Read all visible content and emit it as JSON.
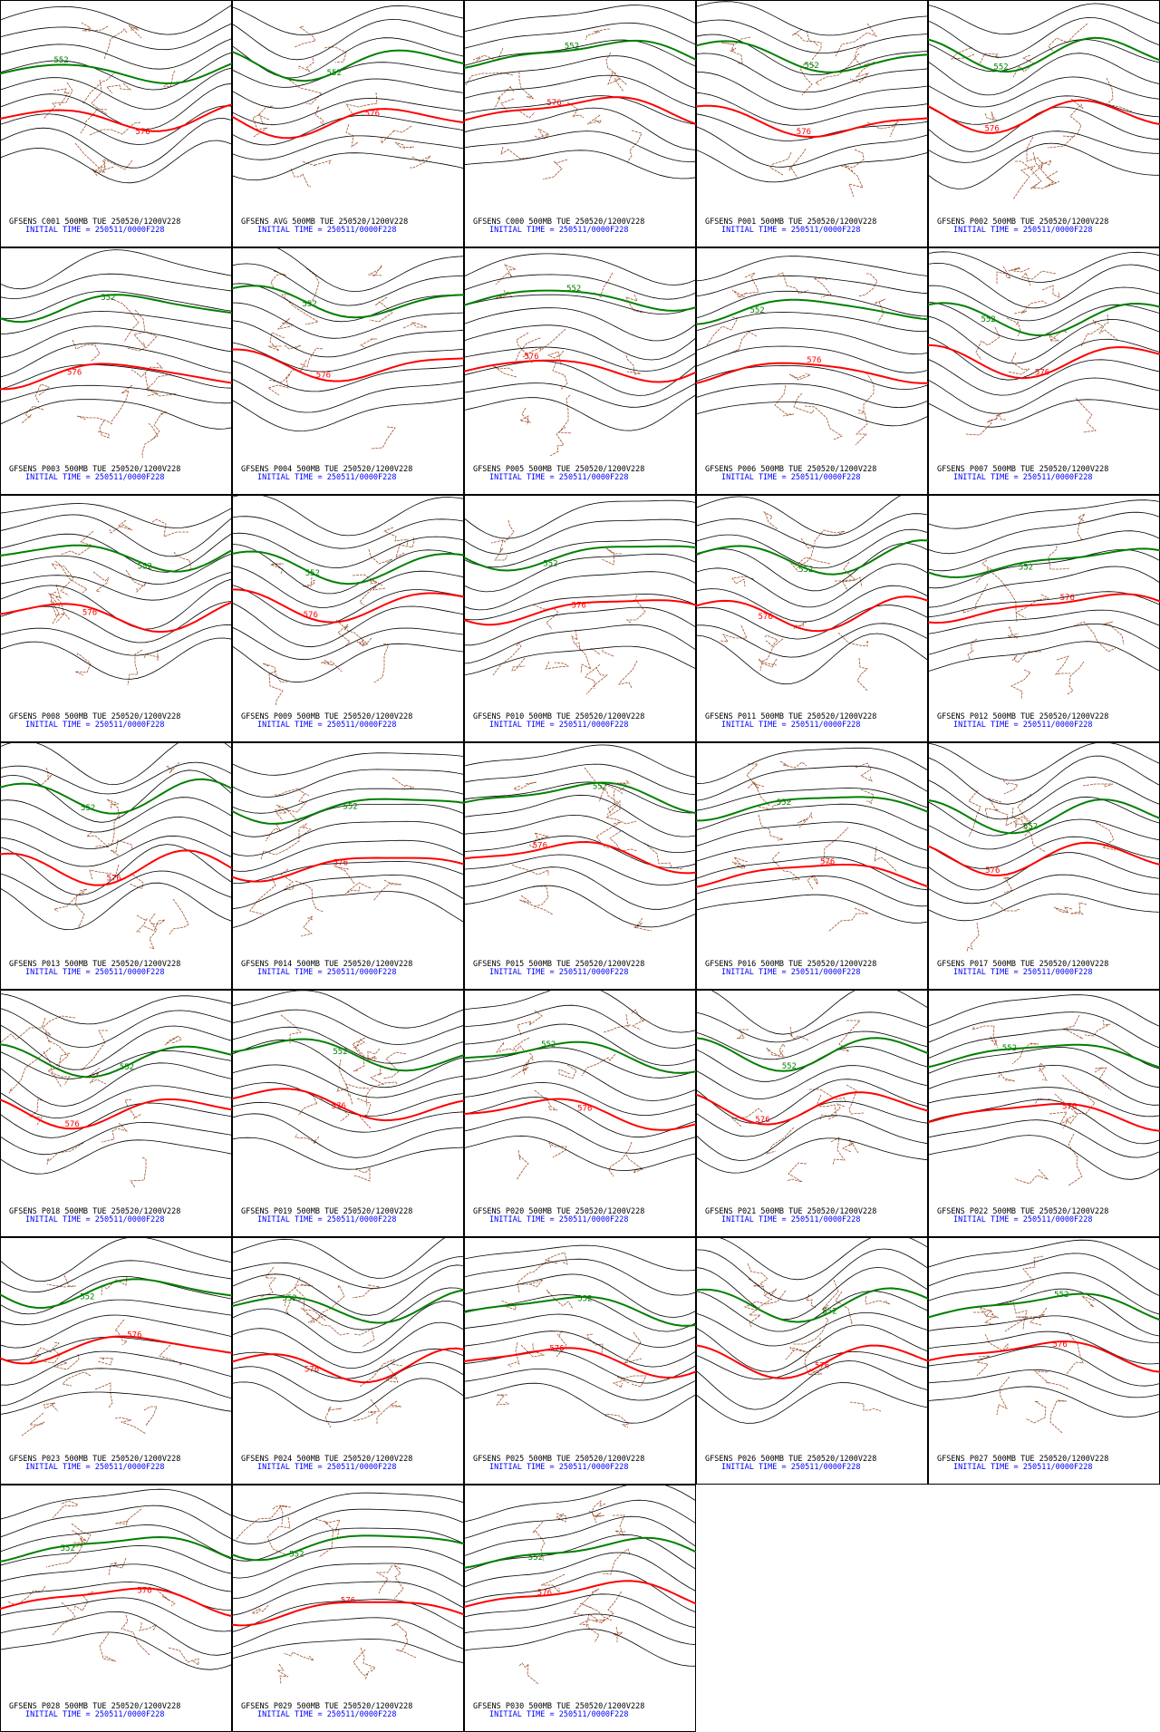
{
  "panels": [
    {
      "title": "GFSENS C001 500MB TUE 250520/1200V228",
      "init": "INITIAL TIME = 250511/0000F228",
      "labels": [
        "552",
        "576"
      ]
    },
    {
      "title": "GFSENS AVG 500MB TUE 250520/1200V228",
      "init": "INITIAL TIME = 250511/0000F228",
      "labels": [
        "552",
        "576"
      ]
    },
    {
      "title": "GFSENS C000 500MB TUE 250520/1200V228",
      "init": "INITIAL TIME = 250511/0000F228",
      "labels": [
        "552",
        "576"
      ]
    },
    {
      "title": "GFSENS P001 500MB TUE 250520/1200V228",
      "init": "INITIAL TIME = 250511/0000F228",
      "labels": [
        "552",
        "576"
      ]
    },
    {
      "title": "GFSENS P002 500MB TUE 250520/1200V228",
      "init": "INITIAL TIME = 250511/0000F228",
      "labels": [
        "552",
        "576"
      ]
    },
    {
      "title": "GFSENS P003 500MB TUE 250520/1200V228",
      "init": "INITIAL TIME = 250511/0000F228",
      "labels": [
        "552",
        "576"
      ]
    },
    {
      "title": "GFSENS P004 500MB TUE 250520/1200V228",
      "init": "INITIAL TIME = 250511/0000F228",
      "labels": [
        "552",
        "576"
      ]
    },
    {
      "title": "GFSENS P005 500MB TUE 250520/1200V228",
      "init": "INITIAL TIME = 250511/0000F228",
      "labels": [
        "552",
        "576"
      ]
    },
    {
      "title": "GFSENS P006 500MB TUE 250520/1200V228",
      "init": "INITIAL TIME = 250511/0000F228",
      "labels": [
        "552",
        "576"
      ]
    },
    {
      "title": "GFSENS P007 500MB TUE 250520/1200V228",
      "init": "INITIAL TIME = 250511/0000F228",
      "labels": [
        "552",
        "576"
      ]
    },
    {
      "title": "GFSENS P008 500MB TUE 250520/1200V228",
      "init": "INITIAL TIME = 250511/0000F228",
      "labels": [
        "552",
        "576"
      ]
    },
    {
      "title": "GFSENS P009 500MB TUE 250520/1200V228",
      "init": "INITIAL TIME = 250511/0000F228",
      "labels": [
        "552",
        "576"
      ]
    },
    {
      "title": "GFSENS P010 500MB TUE 250520/1200V228",
      "init": "INITIAL TIME = 250511/0000F228",
      "labels": [
        "552",
        "576"
      ]
    },
    {
      "title": "GFSENS P011 500MB TUE 250520/1200V228",
      "init": "INITIAL TIME = 250511/0000F228",
      "labels": [
        "552",
        "576"
      ]
    },
    {
      "title": "GFSENS P012 500MB TUE 250520/1200V228",
      "init": "INITIAL TIME = 250511/0000F228",
      "labels": [
        "552",
        "576"
      ]
    },
    {
      "title": "GFSENS P013 500MB TUE 250520/1200V228",
      "init": "INITIAL TIME = 250511/0000F228",
      "labels": [
        "552",
        "576"
      ]
    },
    {
      "title": "GFSENS P014 500MB TUE 250520/1200V228",
      "init": "INITIAL TIME = 250511/0000F228",
      "labels": [
        "552",
        "576"
      ]
    },
    {
      "title": "GFSENS P015 500MB TUE 250520/1200V228",
      "init": "INITIAL TIME = 250511/0000F228",
      "labels": [
        "552",
        "576"
      ]
    },
    {
      "title": "GFSENS P016 500MB TUE 250520/1200V228",
      "init": "INITIAL TIME = 250511/0000F228",
      "labels": [
        "552",
        "576"
      ]
    },
    {
      "title": "GFSENS P017 500MB TUE 250520/1200V228",
      "init": "INITIAL TIME = 250511/0000F228",
      "labels": [
        "552",
        "576"
      ]
    },
    {
      "title": "GFSENS P018 500MB TUE 250520/1200V228",
      "init": "INITIAL TIME = 250511/0000F228",
      "labels": [
        "552",
        "576"
      ]
    },
    {
      "title": "GFSENS P019 500MB TUE 250520/1200V228",
      "init": "INITIAL TIME = 250511/0000F228",
      "labels": [
        "552",
        "576"
      ]
    },
    {
      "title": "GFSENS P020 500MB TUE 250520/1200V228",
      "init": "INITIAL TIME = 250511/0000F228",
      "labels": [
        "552",
        "576"
      ]
    },
    {
      "title": "GFSENS P021 500MB TUE 250520/1200V228",
      "init": "INITIAL TIME = 250511/0000F228",
      "labels": [
        "552",
        "576"
      ]
    },
    {
      "title": "GFSENS P022 500MB TUE 250520/1200V228",
      "init": "INITIAL TIME = 250511/0000F228",
      "labels": [
        "552",
        "576"
      ]
    },
    {
      "title": "GFSENS P023 500MB TUE 250520/1200V228",
      "init": "INITIAL TIME = 250511/0000F228",
      "labels": [
        "552",
        "576"
      ]
    },
    {
      "title": "GFSENS P024 500MB TUE 250520/1200V228",
      "init": "INITIAL TIME = 250511/0000F228",
      "labels": [
        "552",
        "576"
      ]
    },
    {
      "title": "GFSENS P025 500MB TUE 250520/1200V228",
      "init": "INITIAL TIME = 250511/0000F228",
      "labels": [
        "552",
        "576"
      ]
    },
    {
      "title": "GFSENS P026 500MB TUE 250520/1200V228",
      "init": "INITIAL TIME = 250511/0000F228",
      "labels": [
        "552",
        "576"
      ]
    },
    {
      "title": "GFSENS P027 500MB TUE 250520/1200V228",
      "init": "INITIAL TIME = 250511/0000F228",
      "labels": [
        "552",
        "576"
      ]
    },
    {
      "title": "GFSENS P028 500MB TUE 250520/1200V228",
      "init": "INITIAL TIME = 250511/0000F228",
      "labels": [
        "552",
        "576"
      ]
    },
    {
      "title": "GFSENS P029 500MB TUE 250520/1200V228",
      "init": "INITIAL TIME = 250511/0000F228",
      "labels": [
        "552",
        "576"
      ]
    },
    {
      "title": "GFSENS P030 500MB TUE 250520/1200V228",
      "init": "INITIAL TIME = 250511/0000F228",
      "labels": [
        "552",
        "576"
      ]
    }
  ]
}
